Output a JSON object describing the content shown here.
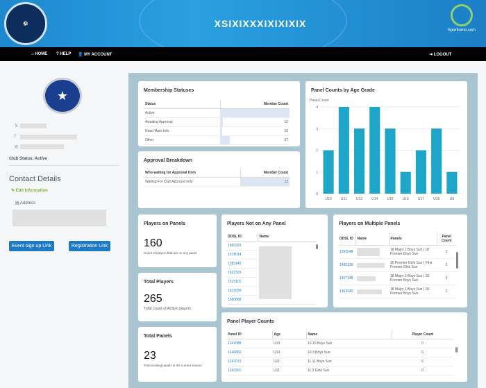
{
  "header": {
    "league_logo_text": "NORTHSIDE SCHOOLS FOOTBALL LEAGUE",
    "title": "XSIXIXXXIXIXIXIX",
    "sportlomo": "Sportlomo.com"
  },
  "nav": {
    "home": "⌂ HOME",
    "help": "? HELP",
    "account": "👤 MY ACCOUNT",
    "logout": "⇥ LOGOUT"
  },
  "sidebar": {
    "club_logo_text": "AURORA UNITED",
    "club_status": "Club Status: Active",
    "contact_title": "Contact Details",
    "edit": "Edit Information",
    "address": "Address",
    "event_btn": "Event sign up Link",
    "reg_btn": "Registration Link"
  },
  "membership": {
    "title": "Membership Statuses",
    "headers": [
      "Status",
      "Member Count"
    ],
    "rows": [
      {
        "status": "Active",
        "count": ""
      },
      {
        "status": "Awaiting Approval",
        "count": "12"
      },
      {
        "status": "Need More Info",
        "count": "10"
      },
      {
        "status": "Other",
        "count": "37"
      }
    ]
  },
  "approval": {
    "title": "Approval Breakdown",
    "headers": [
      "Who waiting for Approval from",
      "Member Count"
    ],
    "rows": [
      {
        "who": "Waiting For Club Approval only",
        "count": "12"
      }
    ]
  },
  "chart_data": {
    "type": "bar",
    "title": "Panel Counts by Age Grade",
    "ylabel": "Panel Count",
    "xlabel": "",
    "categories": [
      "U10",
      "U11",
      "U13",
      "U14",
      "U15",
      "U16",
      "U17",
      "U18",
      "U9"
    ],
    "values": [
      2,
      4,
      3,
      4,
      3,
      1,
      2,
      3,
      1
    ],
    "ylim": [
      0,
      4
    ],
    "yticks": [
      0,
      1,
      2,
      3,
      4
    ],
    "color": "#1da6c8"
  },
  "players_on_panels": {
    "title": "Players on Panels",
    "value": "160",
    "caption": "Count of players that are on any panel"
  },
  "total_players": {
    "title": "Total Players",
    "value": "265",
    "caption": "Total count of Active players"
  },
  "total_panels": {
    "title": "Total Panels",
    "value": "23",
    "caption": "Total existing panels in the current season"
  },
  "not_on_panel": {
    "title": "Players Not on Any Panel",
    "headers": [
      "DDSL ID",
      "Name"
    ],
    "ids": [
      "1560323",
      "1378014",
      "1383145",
      "1622329",
      "1515101",
      "1619039",
      "1560888"
    ]
  },
  "multi": {
    "title": "Players on Multiple Panels",
    "headers": [
      "DDSL ID",
      "Name",
      "Panels",
      "Panel Count"
    ],
    "rows": [
      {
        "id": "1353548",
        "panels": "18 Major 1 Boys Sun | 18 Premier Boys Sun",
        "count": "2"
      },
      {
        "id": "1495139",
        "panels": "15 Premier Girls Sun | Yths Premier Girls Sun",
        "count": "2"
      },
      {
        "id": "1407148",
        "panels": "18 Major 1 Boys Sun | 18 Premier Boys Sun",
        "count": "2"
      },
      {
        "id": "1363340",
        "panels": "18 Major 1 Boys Sun | 18 Premier Boys Sun",
        "count": "2"
      }
    ]
  },
  "panel_counts": {
    "title": "Panel Player Counts",
    "headers": [
      "Panel ID",
      "Age",
      "Name",
      "Player Count"
    ],
    "rows": [
      {
        "id": "1247088",
        "age": "U10",
        "name": "10.10 Boys Sun",
        "count": "0"
      },
      {
        "id": "1246860",
        "age": "U10",
        "name": "10.3 Boys Sun",
        "count": "0"
      },
      {
        "id": "1247073",
        "age": "U11",
        "name": "11.11 Boys Sun",
        "count": "0"
      },
      {
        "id": "1243291",
        "age": "U11",
        "name": "11.2 Girls Sun",
        "count": "0"
      }
    ]
  }
}
